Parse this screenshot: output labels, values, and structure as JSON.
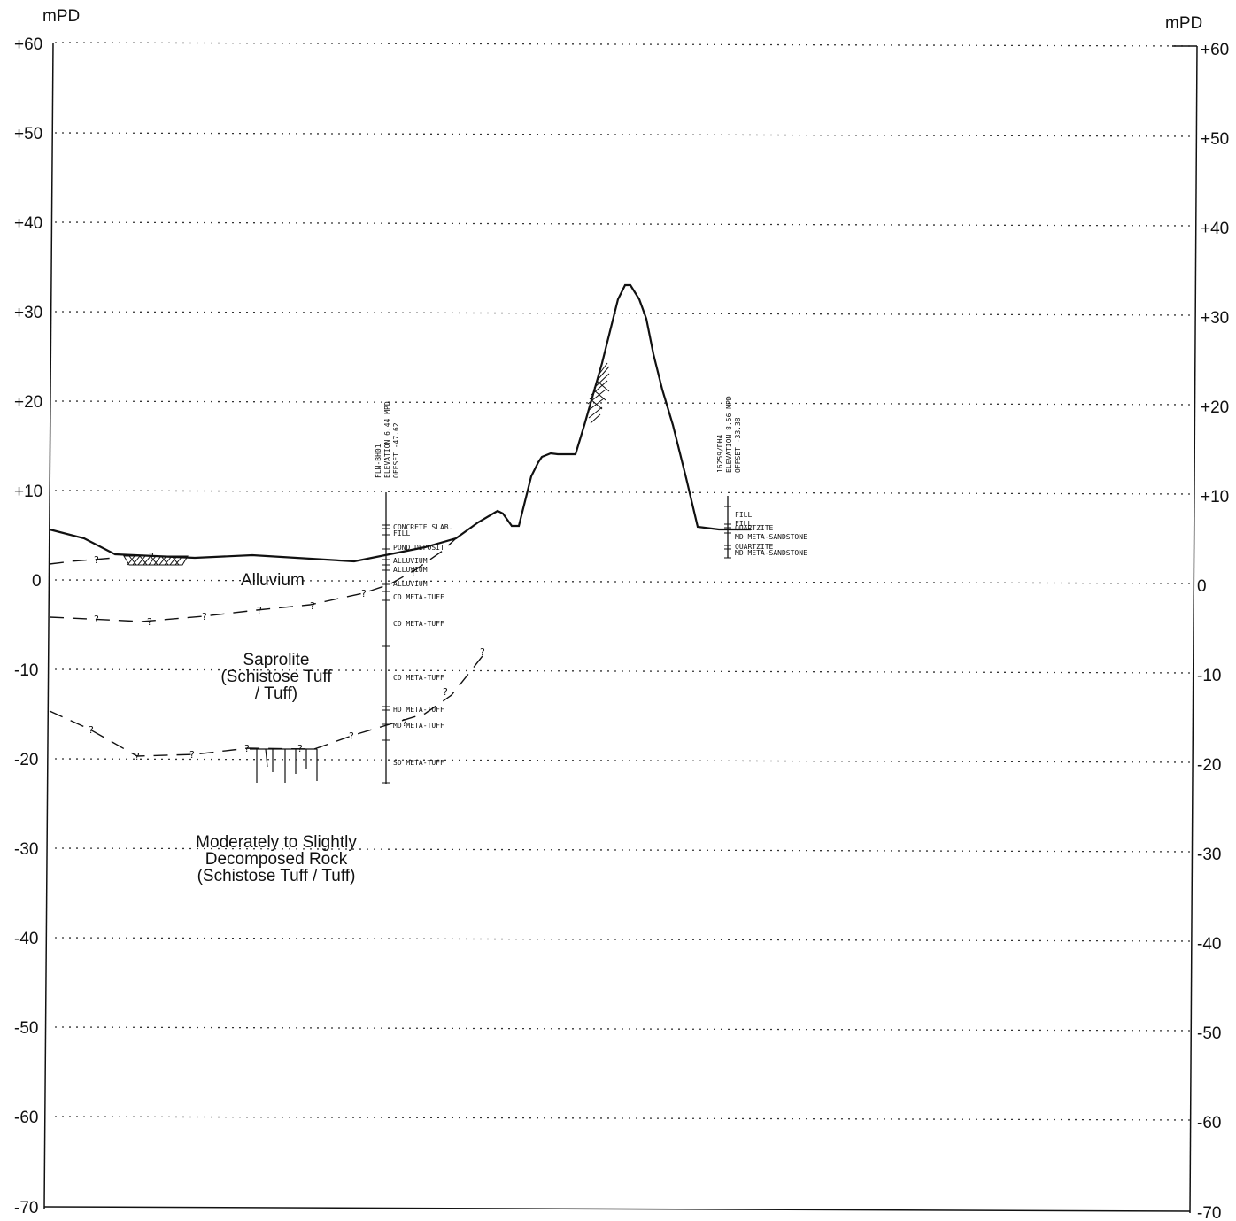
{
  "axes": {
    "left_unit": "mPD",
    "right_unit": "mPD",
    "ticks": [
      "+60",
      "+50",
      "+40",
      "+30",
      "+20",
      "+10",
      "0",
      "-10",
      "-20",
      "-30",
      "-40",
      "-50",
      "-60",
      "-70"
    ]
  },
  "regions": {
    "alluvium": "Alluvium",
    "saprolite": [
      "Saprolite",
      "(Schistose Tuff",
      "/ Tuff)"
    ],
    "rock": [
      "Moderately to Slightly",
      "Decomposed Rock",
      "(Schistose Tuff / Tuff)"
    ]
  },
  "boreholes": [
    {
      "header": [
        "FLN-BH01",
        "ELEVATION 6.44 MPD",
        "OFFSET -47.62"
      ],
      "layers": [
        "CONCRETE SLAB.",
        "FILL",
        "POND DEPOSIT",
        "ALLUVIUM",
        "ALLUVIUM",
        "ALLUVIUM",
        "CD META-TUFF",
        "CD META-TUFF",
        "CD META-TUFF",
        "HD META-TUFF",
        "MD META-TUFF",
        "SD META-TUFF"
      ]
    },
    {
      "header": [
        "16259/DH4",
        "ELEVATION 8.56 MPD",
        "OFFSET -33.38"
      ],
      "layers": [
        "FILL",
        "FILL",
        "QUARTZITE",
        "MD META-SANDSTONE",
        "QUARTZITE",
        "MD META-SANDSTONE"
      ]
    }
  ],
  "question_mark": "?"
}
